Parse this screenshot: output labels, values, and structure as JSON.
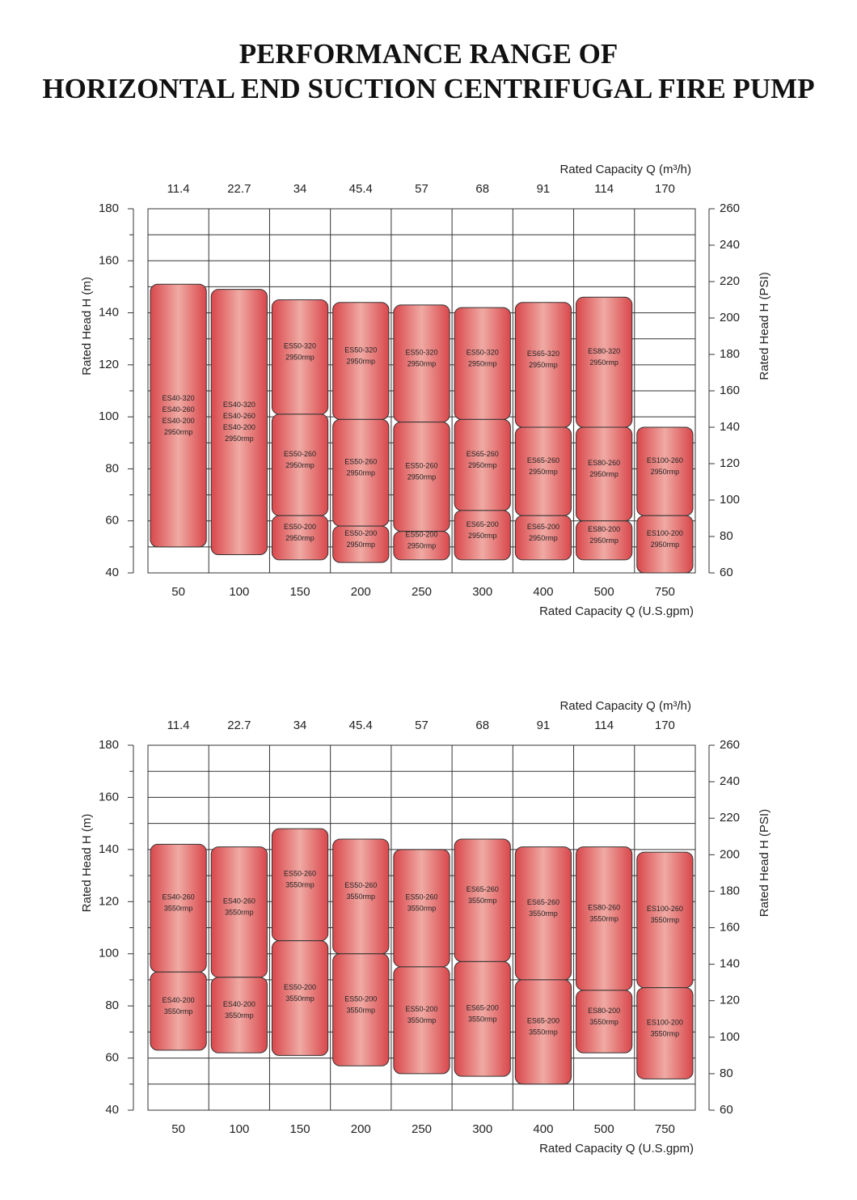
{
  "title": [
    "PERFORMANCE RANGE OF",
    "HORIZONTAL END SUCTION CENTRIFUGAL FIRE PUMP"
  ],
  "chart_data": [
    {
      "type": "range",
      "color": "#d9474b",
      "x_label": "Rated Capacity  Q (U.S.gpm)",
      "x2_label": "Rated Capacity  Q (m³/h)",
      "y_label": "Rated Head   H (m)",
      "y2_label": "Rated Head   H (PSI)",
      "categories": [
        50,
        100,
        150,
        200,
        250,
        300,
        400,
        500,
        750
      ],
      "top_labels": [
        11.4,
        22.7,
        34,
        45.4,
        57,
        68,
        91,
        114,
        170
      ],
      "ylim": [
        40,
        180
      ],
      "yticks": [
        40,
        60,
        80,
        100,
        120,
        140,
        160,
        180
      ],
      "yminorticks": [
        50,
        70,
        90,
        110,
        130,
        150,
        170
      ],
      "y2lim": [
        60,
        260
      ],
      "y2ticks": [
        60,
        80,
        100,
        120,
        140,
        160,
        180,
        200,
        220,
        240,
        260
      ],
      "ranges": [
        [
          {
            "low": 50,
            "high": 151,
            "labels": [
              "ES40-320",
              "ES40-260",
              "ES40-200",
              "2950rmp"
            ]
          }
        ],
        [
          {
            "low": 47,
            "high": 149,
            "labels": [
              "ES40-320",
              "ES40-260",
              "ES40-200",
              "2950rmp"
            ]
          }
        ],
        [
          {
            "low": 101,
            "high": 145,
            "labels": [
              "ES50-320",
              "2950rmp"
            ]
          },
          {
            "low": 62,
            "high": 101,
            "labels": [
              "ES50-260",
              "2950rmp"
            ]
          },
          {
            "low": 45,
            "high": 62,
            "labels": [
              "ES50-200",
              "2950rmp"
            ]
          }
        ],
        [
          {
            "low": 99,
            "high": 144,
            "labels": [
              "ES50-320",
              "2950rmp"
            ]
          },
          {
            "low": 58,
            "high": 99,
            "labels": [
              "ES50-260",
              "2950rmp"
            ]
          },
          {
            "low": 44,
            "high": 58,
            "labels": [
              "ES50-200",
              "2950rmp"
            ]
          }
        ],
        [
          {
            "low": 98,
            "high": 143,
            "labels": [
              "ES50-320",
              "2950rmp"
            ]
          },
          {
            "low": 56,
            "high": 98,
            "labels": [
              "ES50-260",
              "2950rmp"
            ]
          },
          {
            "low": 45,
            "high": 56,
            "labels": [
              "ES50-200",
              "2950rmp"
            ]
          }
        ],
        [
          {
            "low": 99,
            "high": 142,
            "labels": [
              "ES50-320",
              "2950rmp"
            ]
          },
          {
            "low": 64,
            "high": 99,
            "labels": [
              "ES65-260",
              "2950rmp"
            ]
          },
          {
            "low": 45,
            "high": 64,
            "labels": [
              "ES65-200",
              "2950rmp"
            ]
          }
        ],
        [
          {
            "low": 96,
            "high": 144,
            "labels": [
              "ES65-320",
              "2950rmp"
            ]
          },
          {
            "low": 62,
            "high": 96,
            "labels": [
              "ES65-260",
              "2950rmp"
            ]
          },
          {
            "low": 45,
            "high": 62,
            "labels": [
              "ES65-200",
              "2950rmp"
            ]
          }
        ],
        [
          {
            "low": 96,
            "high": 146,
            "labels": [
              "ES80-320",
              "2950rmp"
            ]
          },
          {
            "low": 60,
            "high": 96,
            "labels": [
              "ES80-260",
              "2950rmp"
            ]
          },
          {
            "low": 45,
            "high": 60,
            "labels": [
              "ES80-200",
              "2950rmp"
            ]
          }
        ],
        [
          {
            "low": 62,
            "high": 96,
            "labels": [
              "ES100-260",
              "2950rmp"
            ]
          },
          {
            "low": 40,
            "high": 62,
            "labels": [
              "ES100-200",
              "2950rmp"
            ]
          }
        ]
      ]
    },
    {
      "type": "range",
      "color": "#d9474b",
      "x_label": "Rated Capacity  Q (U.S.gpm)",
      "x2_label": "Rated Capacity  Q (m³/h)",
      "y_label": "Rated Head   H (m)",
      "y2_label": "Rated Head   H (PSI)",
      "categories": [
        50,
        100,
        150,
        200,
        250,
        300,
        400,
        500,
        750
      ],
      "top_labels": [
        11.4,
        22.7,
        34,
        45.4,
        57,
        68,
        91,
        114,
        170
      ],
      "ylim": [
        40,
        180
      ],
      "yticks": [
        40,
        60,
        80,
        100,
        120,
        140,
        160,
        180
      ],
      "yminorticks": [
        50,
        70,
        90,
        110,
        130,
        150,
        170
      ],
      "y2lim": [
        60,
        260
      ],
      "y2ticks": [
        60,
        80,
        100,
        120,
        140,
        160,
        180,
        200,
        220,
        240,
        260
      ],
      "ranges": [
        [
          {
            "low": 93,
            "high": 142,
            "labels": [
              "ES40-260",
              "3550rmp"
            ]
          },
          {
            "low": 63,
            "high": 93,
            "labels": [
              "ES40-200",
              "3550rmp"
            ]
          }
        ],
        [
          {
            "low": 91,
            "high": 141,
            "labels": [
              "ES40-260",
              "3550rmp"
            ]
          },
          {
            "low": 62,
            "high": 91,
            "labels": [
              "ES40-200",
              "3550rmp"
            ]
          }
        ],
        [
          {
            "low": 105,
            "high": 148,
            "labels": [
              "ES50-260",
              "3550rmp"
            ]
          },
          {
            "low": 61,
            "high": 105,
            "labels": [
              "ES50-200",
              "3550rmp"
            ]
          }
        ],
        [
          {
            "low": 100,
            "high": 144,
            "labels": [
              "ES50-260",
              "3550rmp"
            ]
          },
          {
            "low": 57,
            "high": 100,
            "labels": [
              "ES50-200",
              "3550rmp"
            ]
          }
        ],
        [
          {
            "low": 95,
            "high": 140,
            "labels": [
              "ES50-260",
              "3550rmp"
            ]
          },
          {
            "low": 54,
            "high": 95,
            "labels": [
              "ES50-200",
              "3550rmp"
            ]
          }
        ],
        [
          {
            "low": 97,
            "high": 144,
            "labels": [
              "ES65-260",
              "3550rmp"
            ]
          },
          {
            "low": 53,
            "high": 97,
            "labels": [
              "ES65-200",
              "3550rmp"
            ]
          }
        ],
        [
          {
            "low": 90,
            "high": 141,
            "labels": [
              "ES65-260",
              "3550rmp"
            ]
          },
          {
            "low": 50,
            "high": 90,
            "labels": [
              "ES65-200",
              "3550rmp"
            ]
          }
        ],
        [
          {
            "low": 86,
            "high": 141,
            "labels": [
              "ES80-260",
              "3550rmp"
            ]
          },
          {
            "low": 62,
            "high": 86,
            "labels": [
              "ES80-200",
              "3550rmp"
            ]
          }
        ],
        [
          {
            "low": 87,
            "high": 139,
            "labels": [
              "ES100-260",
              "3550rmp"
            ]
          },
          {
            "low": 52,
            "high": 87,
            "labels": [
              "ES100-200",
              "3550rmp"
            ]
          }
        ]
      ]
    }
  ]
}
